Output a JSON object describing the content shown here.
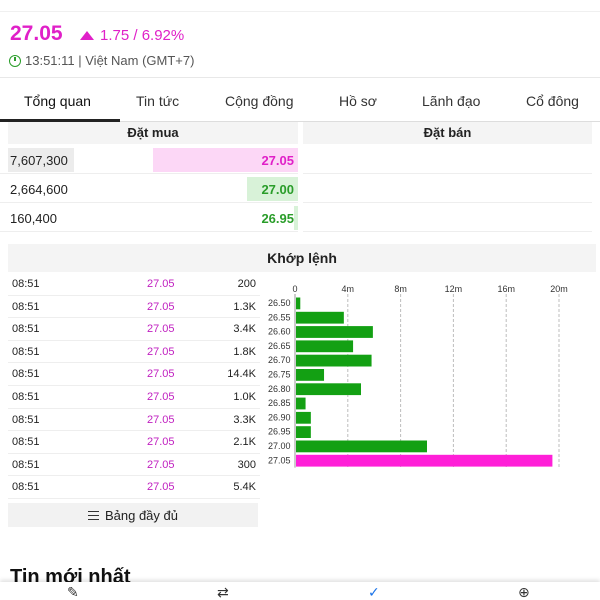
{
  "quote": {
    "price": "27.05",
    "change": "1.75 / 6.92%",
    "timestamp": "13:51:11 | Việt Nam (GMT+7)"
  },
  "tabs": [
    "Tổng quan",
    "Tin tức",
    "Cộng đồng",
    "Hồ sơ",
    "Lãnh đạo",
    "Cổ đông"
  ],
  "order_book": {
    "bid_header": "Đặt mua",
    "ask_header": "Đặt bán",
    "bids": [
      {
        "volume": "7,607,300",
        "price": "27.05",
        "color": "#e020c8"
      },
      {
        "volume": "2,664,600",
        "price": "27.00",
        "color": "#2a9d2a"
      },
      {
        "volume": "160,400",
        "price": "26.95",
        "color": "#2a9d2a"
      }
    ]
  },
  "matched": {
    "title": "Khớp lệnh",
    "trades": [
      {
        "time": "08:51",
        "price": "27.05",
        "volume": "200"
      },
      {
        "time": "08:51",
        "price": "27.05",
        "volume": "1.3K"
      },
      {
        "time": "08:51",
        "price": "27.05",
        "volume": "3.4K"
      },
      {
        "time": "08:51",
        "price": "27.05",
        "volume": "1.8K"
      },
      {
        "time": "08:51",
        "price": "27.05",
        "volume": "14.4K"
      },
      {
        "time": "08:51",
        "price": "27.05",
        "volume": "1.0K"
      },
      {
        "time": "08:51",
        "price": "27.05",
        "volume": "3.3K"
      },
      {
        "time": "08:51",
        "price": "27.05",
        "volume": "2.1K"
      },
      {
        "time": "08:51",
        "price": "27.05",
        "volume": "300"
      },
      {
        "time": "08:51",
        "price": "27.05",
        "volume": "5.4K"
      }
    ],
    "full_button": "Bảng đầy đủ"
  },
  "chart_data": {
    "type": "bar",
    "orientation": "horizontal",
    "categories": [
      "26.50",
      "26.55",
      "26.60",
      "26.65",
      "26.70",
      "26.75",
      "26.80",
      "26.85",
      "26.90",
      "26.95",
      "27.00",
      "27.05"
    ],
    "values": [
      0.4,
      3.7,
      5.9,
      4.4,
      5.8,
      2.2,
      5.0,
      0.8,
      1.2,
      1.2,
      10.0,
      19.5
    ],
    "unit": "m",
    "xlim": [
      0,
      20
    ],
    "xticks": [
      "0",
      "4m",
      "8m",
      "12m",
      "16m",
      "20m"
    ],
    "xtick_values": [
      0,
      4,
      8,
      12,
      16,
      20
    ],
    "grid": true,
    "colors": {
      "default": "#13a013",
      "highlight": "#ff1fd8"
    },
    "highlight_category": "27.05"
  },
  "news": {
    "title": "Tin mới nhất"
  },
  "bottom_nav": {
    "icons": [
      "edit-icon",
      "swap-icon",
      "check-icon",
      "plus-icon"
    ]
  }
}
